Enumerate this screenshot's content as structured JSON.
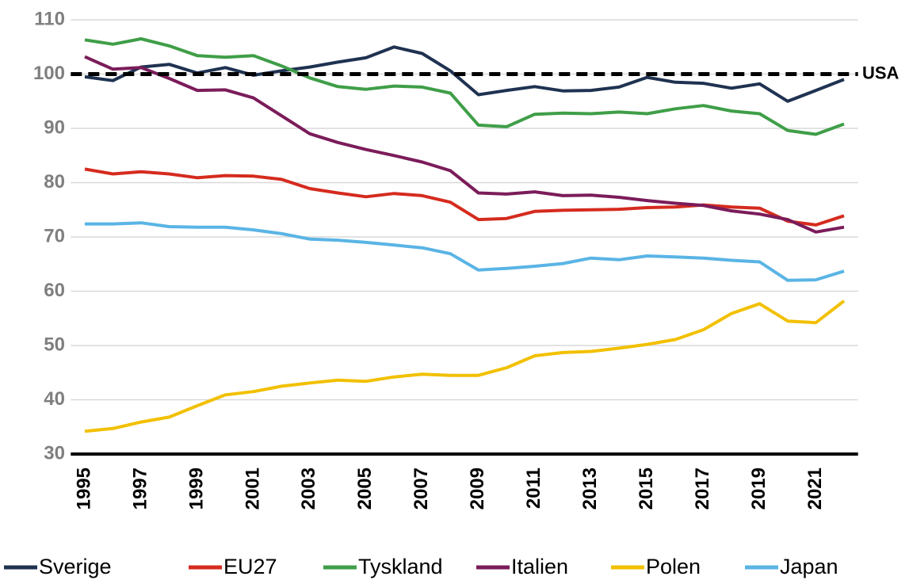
{
  "chart_data": {
    "type": "line",
    "x": [
      1995,
      1996,
      1997,
      1998,
      1999,
      2000,
      2001,
      2002,
      2003,
      2004,
      2005,
      2006,
      2007,
      2008,
      2009,
      2010,
      2011,
      2012,
      2013,
      2014,
      2015,
      2016,
      2017,
      2018,
      2019,
      2020,
      2021,
      2022
    ],
    "xlim": [
      1994.5,
      2022.5
    ],
    "xticks": [
      1995,
      1997,
      1999,
      2001,
      2003,
      2005,
      2007,
      2009,
      2011,
      2013,
      2015,
      2017,
      2019,
      2021
    ],
    "ylim": [
      30,
      110
    ],
    "yticks": [
      30,
      40,
      50,
      60,
      70,
      80,
      90,
      100,
      110
    ],
    "grid": true,
    "legend": "bottom",
    "reference_line": {
      "label": "USA",
      "value": 100,
      "color": "#000000"
    },
    "series": [
      {
        "name": "Sverige",
        "color": "#1f3251",
        "values": [
          99.5,
          98.8,
          101.3,
          101.8,
          100.2,
          101.2,
          99.8,
          100.6,
          101.3,
          102.2,
          103,
          105,
          103.8,
          100.6,
          96.2,
          97,
          97.7,
          96.9,
          97,
          97.6,
          99.4,
          98.5,
          98.3,
          97.4,
          98.2,
          95,
          97,
          99
        ]
      },
      {
        "name": "EU27",
        "color": "#d52b1e",
        "values": [
          82.5,
          81.6,
          82,
          81.6,
          80.9,
          81.3,
          81.2,
          80.6,
          78.9,
          78.1,
          77.4,
          78,
          77.6,
          76.4,
          73.2,
          73.4,
          74.7,
          74.9,
          75,
          75.1,
          75.4,
          75.5,
          75.9,
          75.5,
          75.3,
          72.9,
          72.2,
          73.9
        ]
      },
      {
        "name": "Tyskland",
        "color": "#3f9e48",
        "values": [
          106.3,
          105.5,
          106.5,
          105.2,
          103.4,
          103.1,
          103.4,
          101.5,
          99.3,
          97.7,
          97.2,
          97.8,
          97.6,
          96.5,
          90.6,
          90.3,
          92.6,
          92.8,
          92.7,
          93,
          92.7,
          93.6,
          94.2,
          93.2,
          92.7,
          89.6,
          88.9,
          90.8
        ]
      },
      {
        "name": "Italien",
        "color": "#7b1c5a",
        "values": [
          103.2,
          100.9,
          101.2,
          99.2,
          97,
          97.1,
          95.6,
          92.3,
          89,
          87.4,
          86.1,
          85,
          83.8,
          82.2,
          78.1,
          77.9,
          78.3,
          77.6,
          77.7,
          77.3,
          76.7,
          76.2,
          75.8,
          74.8,
          74.2,
          73.2,
          70.9,
          71.8
        ]
      },
      {
        "name": "Polen",
        "color": "#f2c000",
        "values": [
          34.2,
          34.7,
          35.9,
          36.8,
          38.9,
          40.9,
          41.5,
          42.5,
          43.1,
          43.6,
          43.4,
          44.2,
          44.7,
          44.5,
          44.5,
          45.9,
          48.1,
          48.7,
          48.9,
          49.5,
          50.2,
          51.1,
          52.9,
          55.9,
          57.7,
          54.5,
          54.2,
          58.2
        ]
      },
      {
        "name": "Japan",
        "color": "#5ab4e5",
        "values": [
          72.4,
          72.4,
          72.6,
          71.9,
          71.8,
          71.8,
          71.3,
          70.6,
          69.6,
          69.4,
          69,
          68.5,
          68,
          66.9,
          63.9,
          64.2,
          64.6,
          65.1,
          66.1,
          65.8,
          66.5,
          66.3,
          66.1,
          65.7,
          65.4,
          62,
          62.1,
          63.7
        ]
      }
    ]
  }
}
